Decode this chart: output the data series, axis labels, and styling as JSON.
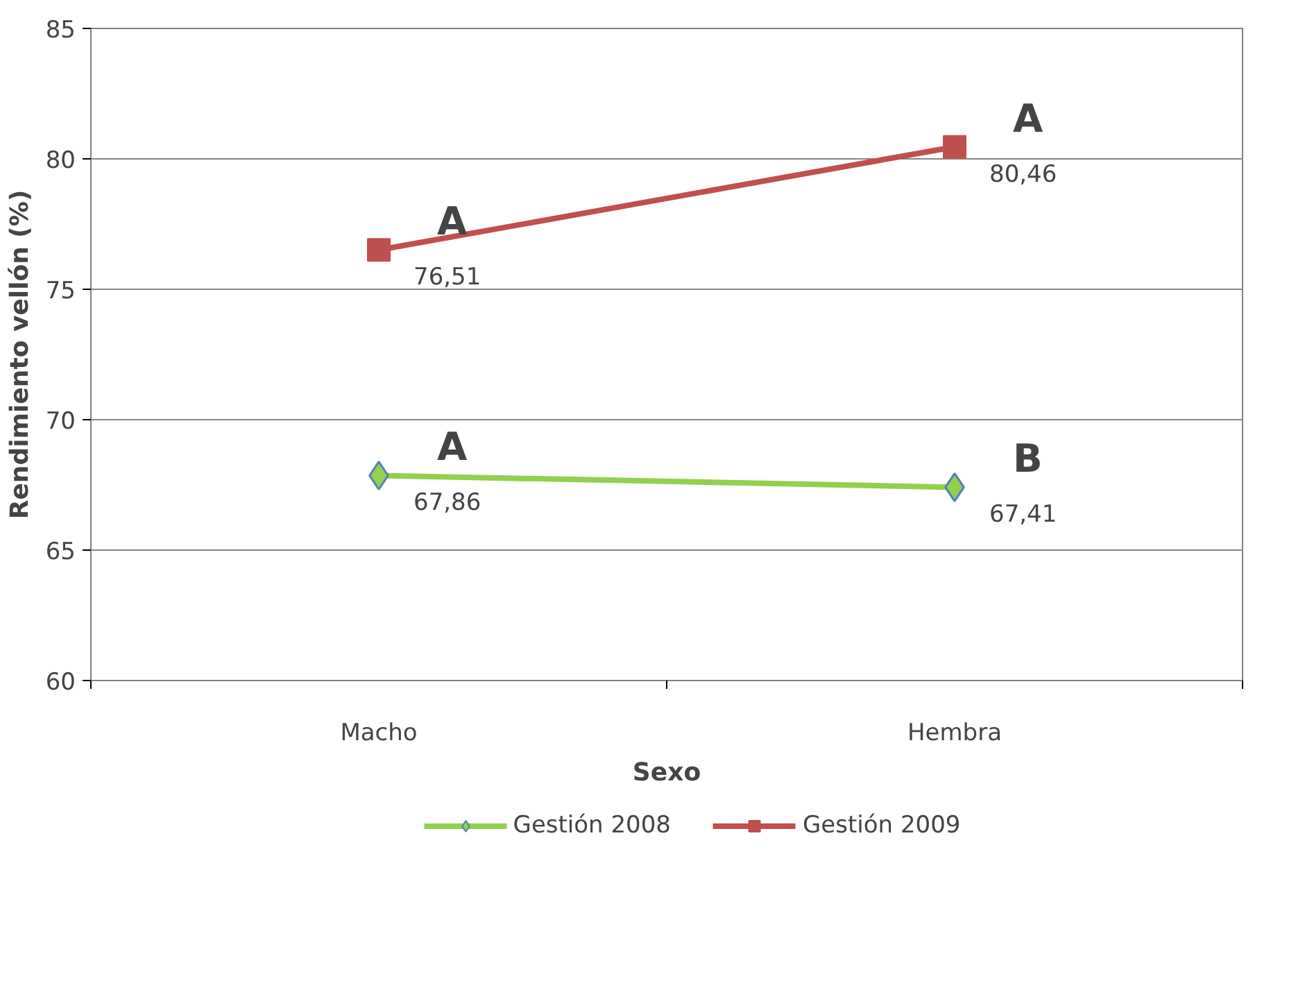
{
  "chart_data": {
    "type": "line",
    "xlabel": "Sexo",
    "ylabel": "Rendimiento vellón (%)",
    "categories": [
      "Macho",
      "Hembra"
    ],
    "series": [
      {
        "name": "Gestión 2008",
        "color": "#92d050",
        "marker": "diamond",
        "values": [
          67.86,
          67.41
        ],
        "value_labels": [
          "67,86",
          "67,41"
        ]
      },
      {
        "name": "Gestión 2009",
        "color": "#c0504d",
        "marker": "square",
        "values": [
          76.51,
          80.46
        ],
        "value_labels": [
          "76,51",
          "80,46"
        ]
      }
    ],
    "ylim": [
      60,
      85
    ],
    "yticks": [
      60,
      65,
      70,
      75,
      80,
      85
    ],
    "grid": "y",
    "legend": "bottom",
    "line_style": "solid",
    "annotations": [
      {
        "text": "A",
        "x": "Macho",
        "y": 76.51
      },
      {
        "text": "A",
        "x": "Hembra",
        "y": 80.46
      },
      {
        "text": "A",
        "x": "Macho",
        "y": 67.86
      },
      {
        "text": "B",
        "x": "Hembra",
        "y": 67.41
      }
    ]
  }
}
